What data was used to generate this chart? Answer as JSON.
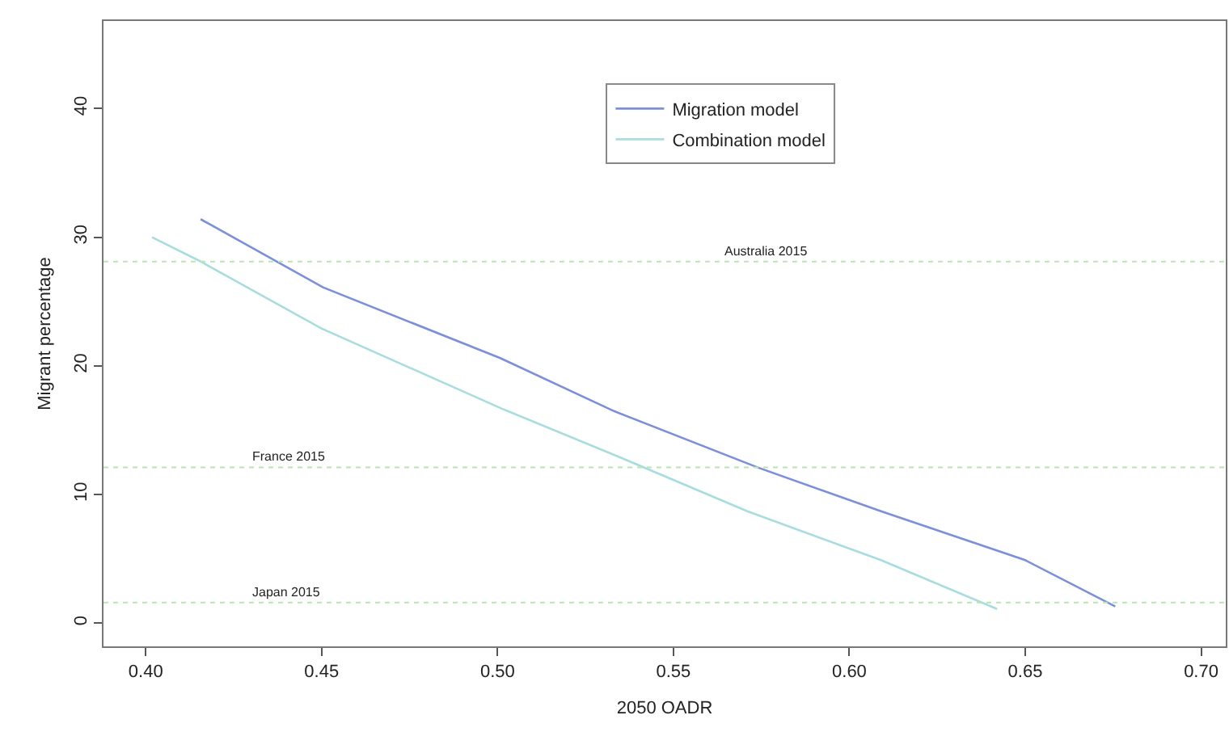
{
  "chart_data": {
    "type": "line",
    "xlabel": "2050 OADR",
    "ylabel": "Migrant percentage",
    "xlim": [
      0.388,
      0.707
    ],
    "ylim": [
      -1.8,
      46.8
    ],
    "xticks": [
      {
        "value": 0.4,
        "label": "0.40"
      },
      {
        "value": 0.45,
        "label": "0.45"
      },
      {
        "value": 0.5,
        "label": "0.50"
      },
      {
        "value": 0.55,
        "label": "0.55"
      },
      {
        "value": 0.6,
        "label": "0.60"
      },
      {
        "value": 0.65,
        "label": "0.65"
      },
      {
        "value": 0.7,
        "label": "0.70"
      }
    ],
    "yticks": [
      0,
      10,
      20,
      30,
      40
    ],
    "series": [
      {
        "name": "Migration model",
        "color": "#7b8fdb",
        "x": [
          0.4156,
          0.4504,
          0.5008,
          0.533,
          0.574,
          0.609,
          0.65,
          0.6756
        ],
        "values": [
          31.4,
          26.1,
          20.6,
          16.5,
          12.1,
          8.7,
          4.9,
          1.3
        ]
      },
      {
        "name": "Combination model",
        "color": "#a8dde0",
        "x": [
          0.4018,
          0.415,
          0.45,
          0.501,
          0.533,
          0.571,
          0.609,
          0.642
        ],
        "values": [
          30.0,
          28.2,
          22.9,
          16.7,
          13.1,
          8.7,
          4.9,
          1.1
        ]
      }
    ],
    "ref_lines": [
      {
        "axis": "y",
        "value": 28.1,
        "label": "Australia 2015",
        "color": "#b8e6b0",
        "line_style": "dotted"
      },
      {
        "axis": "y",
        "value": 12.1,
        "label": "France 2015",
        "color": "#b8e6b0",
        "line_style": "dotted"
      },
      {
        "axis": "y",
        "value": 1.6,
        "label": "Japan 2015",
        "color": "#b8e6b0",
        "line_style": "dotted"
      }
    ],
    "grid": false,
    "legend": "top",
    "marker": "none",
    "line_style": "solid"
  }
}
